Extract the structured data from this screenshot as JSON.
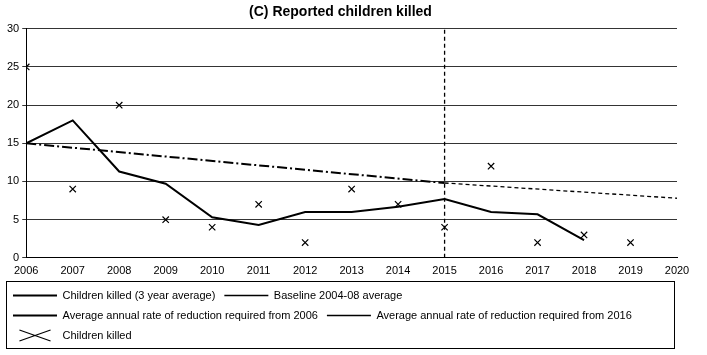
{
  "chart_data": {
    "type": "line",
    "title": "(C) Reported children killed",
    "xlim": [
      2006,
      2020
    ],
    "xticks": [
      2006,
      2007,
      2008,
      2009,
      2010,
      2011,
      2012,
      2013,
      2014,
      2015,
      2016,
      2017,
      2018,
      2019,
      2020
    ],
    "ylim": [
      0,
      30
    ],
    "yticks": [
      0,
      5,
      10,
      15,
      20,
      25,
      30
    ],
    "grid": "y",
    "legend": "bottom",
    "series": [
      {
        "name": "Children killed (3 year average)",
        "type": "line",
        "color": "#000000",
        "line_style": "solid",
        "x": [
          2006,
          2007,
          2008,
          2009,
          2010,
          2011,
          2012,
          2013,
          2014,
          2015,
          2016,
          2017,
          2018
        ],
        "values": [
          15,
          18,
          11.3,
          9.7,
          5.3,
          4.3,
          6,
          6,
          6.7,
          7.7,
          6,
          5.7,
          2.3
        ]
      },
      {
        "name": "Baseline 2004-08 average",
        "type": "line",
        "color": "#000000",
        "line_style": "dashed",
        "x": [
          2015,
          2015
        ],
        "values": [
          0,
          30
        ]
      },
      {
        "name": "Average annual rate of reduction required from 2006",
        "type": "line",
        "color": "#000000",
        "line_style": "dashdot",
        "x": [
          2006,
          2015
        ],
        "values": [
          15,
          9.8
        ]
      },
      {
        "name": "Average annual rate of reduction required from 2016",
        "type": "line",
        "color": "#000000",
        "line_style": "dashed",
        "x": [
          2015,
          2020
        ],
        "values": [
          9.8,
          7.8
        ]
      },
      {
        "name": "Children killed",
        "type": "scatter",
        "color": "#000000",
        "marker": "x",
        "x": [
          2006,
          2007,
          2008,
          2009,
          2010,
          2011,
          2012,
          2013,
          2014,
          2015,
          2016,
          2017,
          2018,
          2019
        ],
        "values": [
          25,
          9,
          20,
          5,
          4,
          7,
          2,
          9,
          7,
          4,
          12,
          2,
          3,
          2
        ]
      }
    ]
  }
}
